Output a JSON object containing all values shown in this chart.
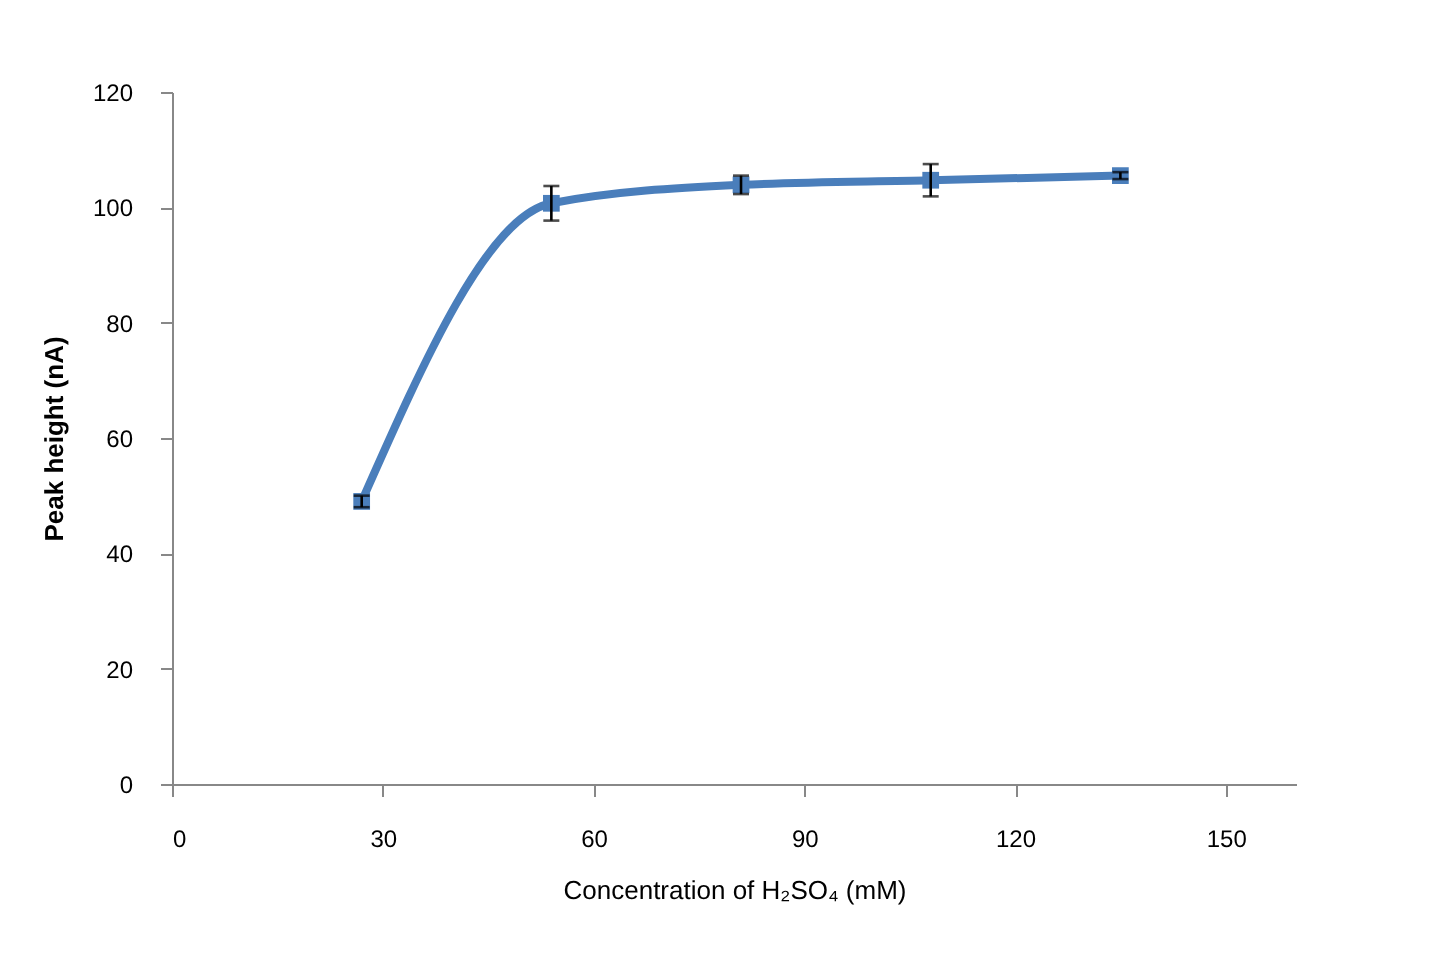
{
  "chart_data": {
    "type": "line",
    "xlabel": "Concentration of H₂SO₄ (mM)",
    "ylabel": "Peak height (nA)",
    "x": [
      27,
      54,
      81,
      108,
      135
    ],
    "series": [
      {
        "color": "#4a7ebb",
        "values": [
          49,
          100.7,
          103.9,
          104.7,
          105.5
        ],
        "errors": [
          1,
          3,
          1.6,
          2.8,
          0.6
        ]
      }
    ],
    "xlim": [
      0,
      160
    ],
    "xticks": [
      0,
      30,
      60,
      90,
      120,
      150
    ],
    "ylim": [
      0,
      120
    ],
    "yticks": [
      0,
      20,
      40,
      60,
      80,
      100,
      120
    ],
    "marker": "square",
    "line_style": "solid",
    "grid": false,
    "legend": false
  }
}
